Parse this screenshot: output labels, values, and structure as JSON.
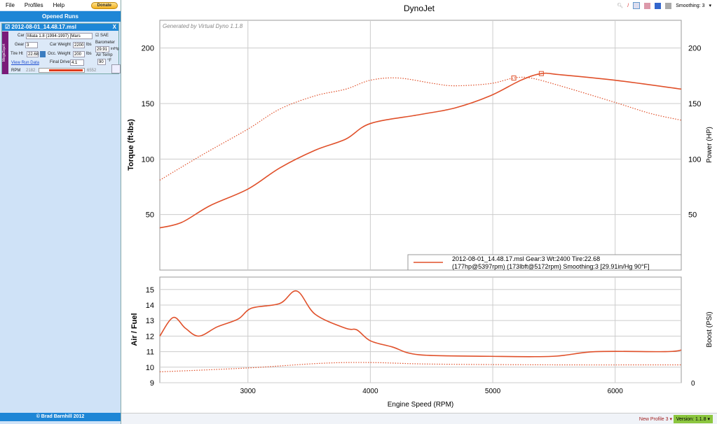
{
  "menu": {
    "file": "File",
    "profiles": "Profiles",
    "help": "Help",
    "donate": "Donate"
  },
  "sidebar": {
    "header": "Opened Runs",
    "footer": "© Brad Barnhill 2012",
    "run": {
      "name": "2012-08-01_14.48.17.msl",
      "tag": "MegaSquirt",
      "car_label": "Car",
      "car": "Miata 1.8 (1994-1997) [Mars",
      "sae": "SAE",
      "gear_label": "Gear",
      "gear": "3",
      "car_weight_label": "Car Weight",
      "car_weight": "2200",
      "lbs": "lbs",
      "barometer_label": "Barometer",
      "barometer": "29.91",
      "barometer_unit": "in/Hg",
      "tire_label": "Tire Ht",
      "tire": "22.68",
      "occ_weight_label": "Occ. Weight",
      "occ_weight": "200",
      "air_temp_label": "Air Temp",
      "air_temp": "90",
      "air_temp_unit": "°F",
      "view_run_data": "View Run Data",
      "final_drive_label": "Final Drive",
      "final_drive": "4.1",
      "rpm_label": "RPM",
      "rpm_min": "2182",
      "rpm_max": "6552"
    }
  },
  "toolbar": {
    "smoothing": "Smoothing: 3"
  },
  "status": {
    "profile": "New Profile 3",
    "version": "Version: 1.1.8"
  },
  "chart_data": [
    {
      "type": "line",
      "title": "DynoJet",
      "watermark": "Generated by Virtual Dyno 1.1.8",
      "ylabel": "Torque (ft-lbs)",
      "y2label": "Power (HP)",
      "xlim": [
        2280,
        6540
      ],
      "ylim": [
        0,
        225
      ],
      "yticks": [
        50,
        100,
        150,
        200
      ],
      "legend": {
        "line1": "2012-08-01_14.48.17.msl Gear:3 Wt:2400 Tire:22.68",
        "line2": "(177hp@5397rpm) (173lbft@5172rpm) Smoothing:3 [29.91in/Hg 90°F]",
        "placement": "bottom-right"
      },
      "series": [
        {
          "name": "Power (HP)",
          "style": "solid",
          "color": "#e0502a",
          "x": [
            2280,
            2460,
            2690,
            3000,
            3260,
            3550,
            3800,
            4000,
            4400,
            4690,
            4980,
            5230,
            5397,
            5550,
            6000,
            6540
          ],
          "y": [
            38,
            43,
            58,
            73,
            92,
            108,
            118,
            132,
            140,
            146,
            157,
            171,
            177,
            176,
            171,
            163
          ]
        },
        {
          "name": "Torque (ft-lbs)",
          "style": "dotted",
          "color": "#e0502a",
          "x": [
            2280,
            2630,
            3000,
            3260,
            3550,
            3800,
            4000,
            4230,
            4520,
            4690,
            4980,
            5172,
            5310,
            5550,
            6000,
            6290,
            6540
          ],
          "y": [
            81,
            104,
            127,
            145,
            157,
            163,
            171,
            173,
            168,
            166,
            168,
            173,
            173,
            166,
            151,
            141,
            135
          ]
        }
      ],
      "markers": [
        {
          "x": 5172,
          "y": 173
        },
        {
          "x": 5397,
          "y": 177
        }
      ]
    },
    {
      "type": "line",
      "xlabel": "Engine Speed (RPM)",
      "ylabel": "Air / Fuel",
      "y2label": "Boost (PSI)",
      "xlim": [
        2280,
        6540
      ],
      "ylim": [
        9,
        15.8
      ],
      "yticks": [
        9,
        10,
        11,
        12,
        13,
        14,
        15
      ],
      "xticks": [
        3000,
        4000,
        5000,
        6000
      ],
      "y2ticks": [
        0
      ],
      "series": [
        {
          "name": "Air / Fuel",
          "style": "solid",
          "color": "#e0502a",
          "x": [
            2280,
            2390,
            2490,
            2600,
            2750,
            2920,
            3030,
            3260,
            3400,
            3550,
            3800,
            3890,
            4000,
            4180,
            4400,
            4980,
            5490,
            5840,
            6410,
            6540
          ],
          "y": [
            12.0,
            13.2,
            12.5,
            12.0,
            12.6,
            13.1,
            13.8,
            14.1,
            14.9,
            13.4,
            12.5,
            12.4,
            11.7,
            11.3,
            10.8,
            10.7,
            10.7,
            11.0,
            11.0,
            11.1
          ]
        },
        {
          "name": "Boost (PSI)",
          "style": "dotted",
          "color": "#e0502a",
          "x": [
            2280,
            3000,
            3600,
            4000,
            4500,
            5500,
            6540
          ],
          "y": [
            9.7,
            9.95,
            10.25,
            10.3,
            10.2,
            10.15,
            10.15
          ]
        }
      ]
    }
  ]
}
